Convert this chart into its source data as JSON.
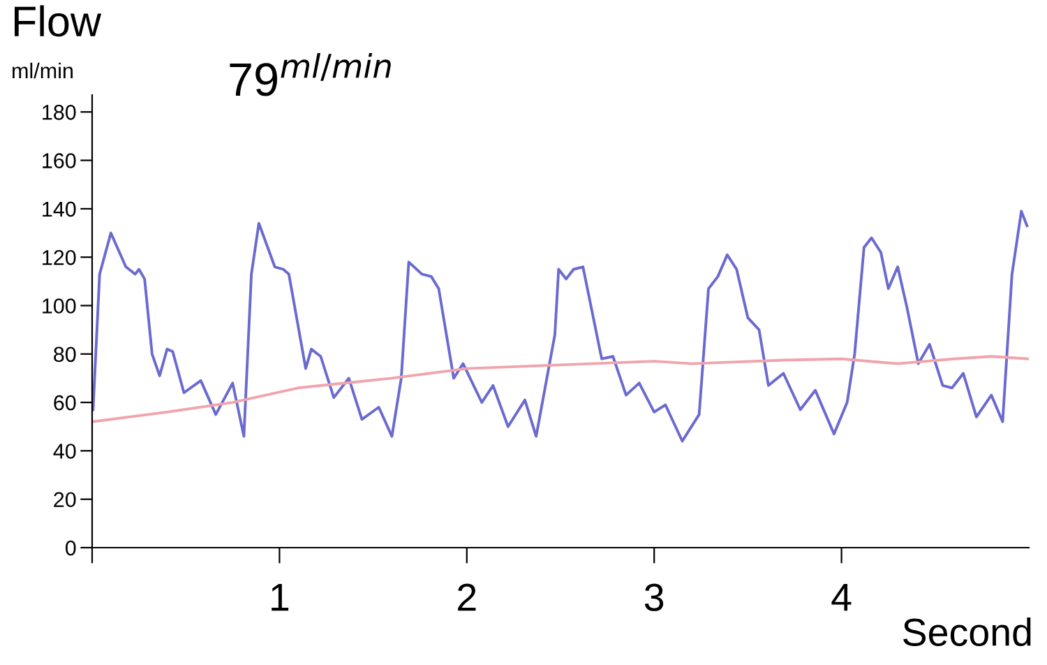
{
  "chart_data": {
    "type": "line",
    "title": "Flow",
    "ylabel": "ml/min",
    "xlabel": "Second",
    "annotations": [
      "79$^{ml/min}$"
    ],
    "series": [
      {
        "color": "#6a6ad0",
        "x": [
          0.005,
          0.04,
          0.1,
          0.18,
          0.23,
          0.25,
          0.28,
          0.32,
          0.36,
          0.4,
          0.43,
          0.49,
          0.58,
          0.66,
          0.75,
          0.81,
          0.85,
          0.89,
          0.975,
          1.02,
          1.05,
          1.14,
          1.17,
          1.22,
          1.29,
          1.37,
          1.44,
          1.53,
          1.6,
          1.65,
          1.69,
          1.76,
          1.81,
          1.85,
          1.93,
          1.98,
          2.08,
          2.14,
          2.22,
          2.31,
          2.37,
          2.47,
          2.49,
          2.53,
          2.57,
          2.62,
          2.72,
          2.78,
          2.85,
          2.92,
          3.0,
          3.06,
          3.15,
          3.24,
          3.29,
          3.34,
          3.39,
          3.44,
          3.5,
          3.56,
          3.61,
          3.69,
          3.78,
          3.86,
          3.96,
          4.03,
          4.07,
          4.12,
          4.16,
          4.21,
          4.25,
          4.3,
          4.35,
          4.41,
          4.47,
          4.54,
          4.59,
          4.65,
          4.72,
          4.8,
          4.86,
          4.91,
          4.96,
          4.99
        ],
        "values": [
          57,
          113,
          130,
          116,
          113,
          115,
          111,
          80,
          71,
          82,
          81,
          64,
          69,
          55,
          68,
          46,
          113,
          134,
          116,
          115,
          113,
          74,
          82,
          79,
          62,
          70,
          53,
          58,
          46,
          70,
          118,
          113,
          112,
          107,
          70,
          76,
          60,
          67,
          50,
          61,
          46,
          88,
          115,
          111,
          115,
          116,
          78,
          79,
          63,
          68,
          56,
          59,
          44,
          55,
          107,
          112,
          121,
          115,
          95,
          90,
          67,
          72,
          57,
          65,
          47,
          60,
          80,
          124,
          128,
          122,
          107,
          116,
          99,
          76,
          84,
          67,
          66,
          72,
          54,
          63,
          52,
          113,
          139,
          133
        ]
      },
      {
        "color": "#f0a4ac",
        "x": [
          0,
          0.4,
          0.75,
          1.1,
          1.6,
          2.0,
          2.5,
          3.0,
          3.2,
          3.7,
          4.0,
          4.3,
          4.6,
          4.8,
          5.0
        ],
        "values": [
          52,
          56,
          60,
          66,
          70,
          74,
          75.5,
          77,
          76,
          77.5,
          78,
          76,
          78,
          79,
          78
        ]
      }
    ],
    "xlim": [
      0,
      5.0
    ],
    "ylim": [
      0,
      187
    ],
    "xticks": [
      {
        "value": 0,
        "label": null
      },
      1,
      2,
      3,
      4
    ],
    "yticks": [
      0,
      20,
      40,
      60,
      80,
      100,
      120,
      140,
      160,
      180
    ],
    "grid": false,
    "legend": false
  }
}
